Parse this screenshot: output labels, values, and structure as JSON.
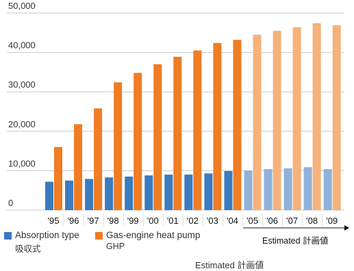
{
  "chart_data": {
    "type": "bar",
    "categories": [
      "'95",
      "'96",
      "'97",
      "'98",
      "'99",
      "'00",
      "'01",
      "'02",
      "'03",
      "'04",
      "'05",
      "'06",
      "'07",
      "'08",
      "'09"
    ],
    "series": [
      {
        "name": "Absorption type",
        "name_sub": "吸収式",
        "values": [
          7200,
          7500,
          7900,
          8300,
          8500,
          8800,
          9000,
          9000,
          9300,
          9900,
          10000,
          10400,
          10600,
          10900,
          10400
        ]
      },
      {
        "name": "Gas-engine heat pump",
        "name_sub": "GHP",
        "values": [
          16000,
          21800,
          25800,
          32400,
          34800,
          37000,
          38900,
          40500,
          42400,
          43200,
          44500,
          45500,
          46400,
          47400,
          46900
        ]
      }
    ],
    "estimated_from_index": 10,
    "ylim": [
      0,
      50000
    ],
    "yticks": [
      "0",
      "10,000",
      "20,000",
      "30,000",
      "40,000",
      "50,000"
    ],
    "grid": true,
    "estimated_label": "Estimated 計画値",
    "footer_label": "Estimated 計画値",
    "colors": {
      "absorption": "#3b7bc0",
      "absorption_estimated": "#8fb1dc",
      "ghp": "#f07c23",
      "ghp_estimated": "#f6b27a",
      "grid": "#c8c8c8",
      "axis": "#555555"
    }
  }
}
